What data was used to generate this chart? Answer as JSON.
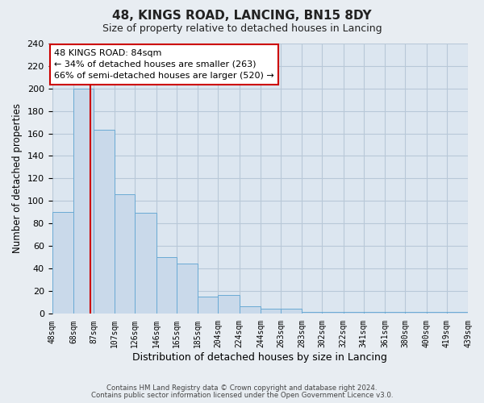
{
  "title": "48, KINGS ROAD, LANCING, BN15 8DY",
  "subtitle": "Size of property relative to detached houses in Lancing",
  "xlabel": "Distribution of detached houses by size in Lancing",
  "ylabel": "Number of detached properties",
  "bar_color": "#c9d9ea",
  "bar_edge_color": "#6aaad4",
  "vline_color": "#cc0000",
  "vline_x": 84,
  "bin_edges": [
    48,
    68,
    87,
    107,
    126,
    146,
    165,
    185,
    204,
    224,
    244,
    263,
    283,
    302,
    322,
    341,
    361,
    380,
    400,
    419,
    439
  ],
  "bin_labels": [
    "48sqm",
    "68sqm",
    "87sqm",
    "107sqm",
    "126sqm",
    "146sqm",
    "165sqm",
    "185sqm",
    "204sqm",
    "224sqm",
    "244sqm",
    "263sqm",
    "283sqm",
    "302sqm",
    "322sqm",
    "341sqm",
    "361sqm",
    "380sqm",
    "400sqm",
    "419sqm",
    "439sqm"
  ],
  "bar_heights": [
    90,
    200,
    163,
    106,
    89,
    50,
    44,
    15,
    16,
    6,
    4,
    4,
    1,
    1,
    1,
    1,
    1,
    1,
    1,
    1
  ],
  "ylim": [
    0,
    240
  ],
  "yticks": [
    0,
    20,
    40,
    60,
    80,
    100,
    120,
    140,
    160,
    180,
    200,
    220,
    240
  ],
  "annotation_title": "48 KINGS ROAD: 84sqm",
  "annotation_line1": "← 34% of detached houses are smaller (263)",
  "annotation_line2": "66% of semi-detached houses are larger (520) →",
  "footer_line1": "Contains HM Land Registry data © Crown copyright and database right 2024.",
  "footer_line2": "Contains public sector information licensed under the Open Government Licence v3.0.",
  "background_color": "#e8edf2",
  "plot_bg_color": "#dce6f0",
  "grid_color": "#b8c8d8"
}
